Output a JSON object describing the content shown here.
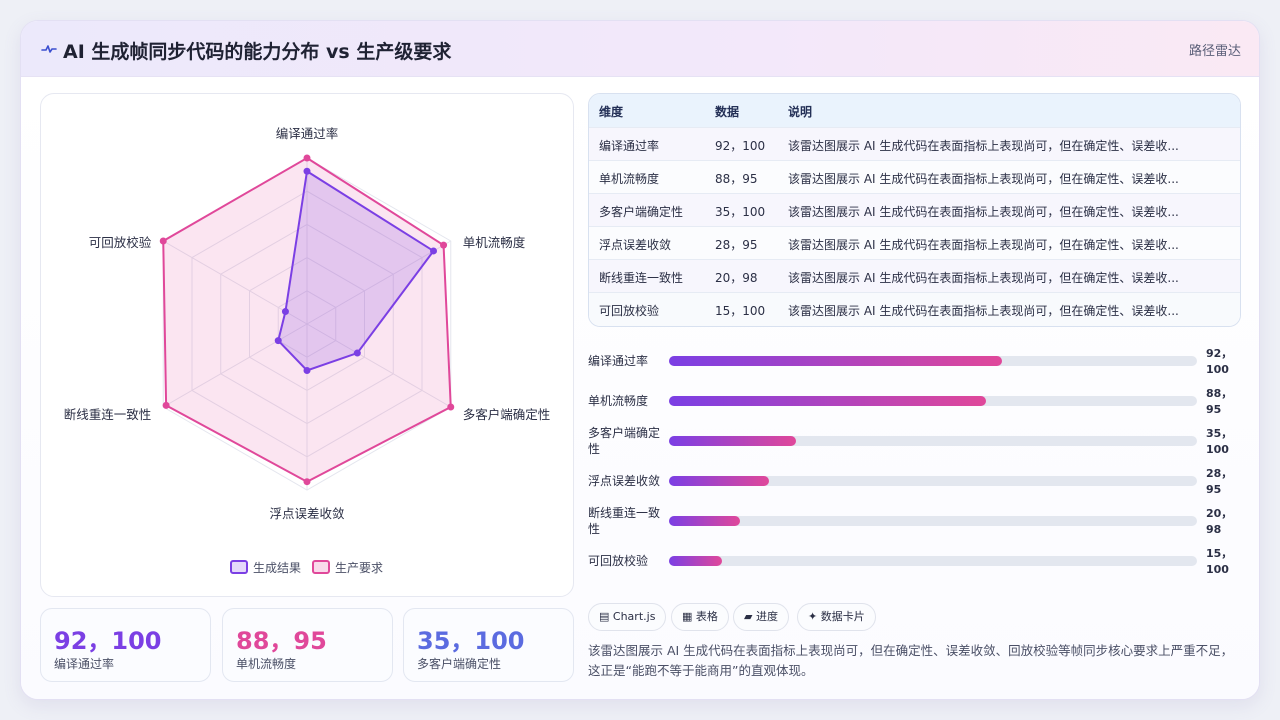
{
  "header": {
    "icon": "wave-icon",
    "title": "AI 生成帧同步代码的能力分布 vs 生产级要求",
    "tag": "路径雷达"
  },
  "chart_data": {
    "type": "radar",
    "axes": [
      "编译通过率",
      "单机流畅度",
      "多客户端确定性",
      "浮点误差收敛",
      "断线重连一致性",
      "可回放校验"
    ],
    "rmax": 100,
    "series": [
      {
        "name": "生成结果",
        "values": [
          92,
          88,
          35,
          28,
          20,
          15
        ],
        "color": "#7b3fe4"
      },
      {
        "name": "生产要求",
        "values": [
          100,
          95,
          100,
          95,
          98,
          100
        ],
        "color": "#e0489a"
      }
    ],
    "legend": [
      "生成结果",
      "生产要求"
    ]
  },
  "table": {
    "headers": [
      "维度",
      "数据",
      "说明"
    ],
    "rows": [
      {
        "dim": "编译通过率",
        "data": "92，100",
        "note": "该雷达图展示 AI 生成代码在表面指标上表现尚可，但在确定性、误差收..."
      },
      {
        "dim": "单机流畅度",
        "data": "88，95",
        "note": "该雷达图展示 AI 生成代码在表面指标上表现尚可，但在确定性、误差收..."
      },
      {
        "dim": "多客户端确定性",
        "data": "35，100",
        "note": "该雷达图展示 AI 生成代码在表面指标上表现尚可，但在确定性、误差收..."
      },
      {
        "dim": "浮点误差收敛",
        "data": "28，95",
        "note": "该雷达图展示 AI 生成代码在表面指标上表现尚可，但在确定性、误差收..."
      },
      {
        "dim": "断线重连一致性",
        "data": "20，98",
        "note": "该雷达图展示 AI 生成代码在表面指标上表现尚可，但在确定性、误差收..."
      },
      {
        "dim": "可回放校验",
        "data": "15，100",
        "note": "该雷达图展示 AI 生成代码在表面指标上表现尚可，但在确定性、误差收..."
      }
    ]
  },
  "progress": [
    {
      "label": "编译通过率",
      "value_text": "92，100",
      "fill": 0.63
    },
    {
      "label": "单机流畅度",
      "value_text": "88，95",
      "fill": 0.6
    },
    {
      "label": "多客户端确定性",
      "value_text": "35，100",
      "fill": 0.24
    },
    {
      "label": "浮点误差收敛",
      "value_text": "28，95",
      "fill": 0.19
    },
    {
      "label": "断线重连一致性",
      "value_text": "20，98",
      "fill": 0.135
    },
    {
      "label": "可回放校验",
      "value_text": "15，100",
      "fill": 0.1
    }
  ],
  "stats": [
    {
      "value": "92，100",
      "label": "编译通过率",
      "color": "#7b3fe4"
    },
    {
      "value": "88，95",
      "label": "单机流畅度",
      "color": "#e0489a"
    },
    {
      "value": "35，100",
      "label": "多客户端确定性",
      "color": "#5b6be0"
    }
  ],
  "chips": [
    {
      "icon": "chart-icon",
      "glyph": "▤",
      "label": "Chart.js"
    },
    {
      "icon": "table-icon",
      "glyph": "▦",
      "label": "表格"
    },
    {
      "icon": "progress-icon",
      "glyph": "▰",
      "label": "进度"
    },
    {
      "icon": "card-icon",
      "glyph": "✦",
      "label": "数据卡片"
    }
  ],
  "description": "该雷达图展示 AI 生成代码在表面指标上表现尚可，但在确定性、误差收敛、回放校验等帧同步核心要求上严重不足，这正是“能跑不等于能商用”的直观体现。"
}
